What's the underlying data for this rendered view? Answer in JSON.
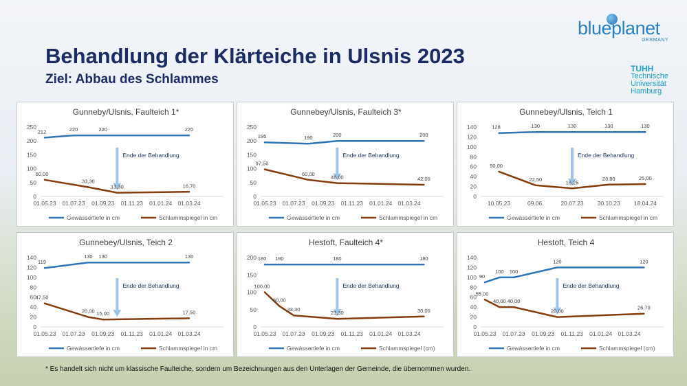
{
  "title": "Behandlung der Klärteiche in Ulsnis 2023",
  "subtitle": "Ziel: Abbau des Schlammes",
  "logos": {
    "blueplanet": {
      "text": "blueplanet",
      "sub": "GERMANY"
    },
    "tuhh": {
      "line1": "TUHH",
      "line2": "Technische",
      "line3": "Universität",
      "line4": "Hamburg"
    }
  },
  "footnote": "* Es handelt sich nicht um klassische Faulteiche, sondern um Bezeichnungen aus den Unterlagen der Gemeinde, die übernommen wurden.",
  "colors": {
    "water": "#2e75b6",
    "sludge": "#843c0c",
    "arrow": "#9dc3e6",
    "title": "#1b2c64"
  },
  "chart_data": [
    {
      "type": "line",
      "title": "Gunneby/Ulsnis, Faulteich 1*",
      "x_ticks": [
        "01.05.23",
        "01.07.23",
        "01.09.23",
        "01.11.23",
        "01.01.24",
        "01.03.24"
      ],
      "ylim": [
        0,
        250
      ],
      "y_ticks": [
        0,
        50,
        100,
        150,
        200,
        250
      ],
      "annotation": "Ende der Behandlung",
      "annotation_x": "01.10.23",
      "series": [
        {
          "name": "Gewässertiefe in cm",
          "color": "#2e75b6",
          "points": [
            [
              "01.05.23",
              212
            ],
            [
              "01.07.23",
              220
            ],
            [
              "01.09.23",
              220
            ],
            [
              "01.03.24",
              220
            ]
          ],
          "labels": [
            "212",
            "220",
            "220",
            "220"
          ]
        },
        {
          "name": "Schlammspiegel in cm",
          "color": "#843c0c",
          "points": [
            [
              "01.05.23",
              60
            ],
            [
              "01.08.23",
              33.3
            ],
            [
              "01.10.23",
              13.3
            ],
            [
              "01.03.24",
              16.7
            ]
          ],
          "labels": [
            "60,00",
            "33,30",
            "13,30",
            "16,70"
          ]
        }
      ]
    },
    {
      "type": "line",
      "title": "Gunnebey/Ulsnis, Faulteich 3*",
      "x_ticks": [
        "01.05.23",
        "01.07.23",
        "01.09.23",
        "01.11.23",
        "01.01.24",
        "01.03.24"
      ],
      "ylim": [
        0,
        250
      ],
      "y_ticks": [
        0,
        50,
        100,
        150,
        200,
        250
      ],
      "annotation": "Ende der Behandlung",
      "annotation_x": "01.10.23",
      "series": [
        {
          "name": "Gewässertiefe in cm",
          "color": "#2e75b6",
          "points": [
            [
              "01.05.23",
              195
            ],
            [
              "01.08.23",
              190
            ],
            [
              "01.10.23",
              200
            ],
            [
              "01.04.24",
              200
            ]
          ],
          "labels": [
            "195",
            "190",
            "200",
            "200"
          ]
        },
        {
          "name": "Schlammspiegel in cm",
          "color": "#843c0c",
          "points": [
            [
              "01.05.23",
              97.5
            ],
            [
              "01.08.23",
              60
            ],
            [
              "01.10.23",
              48
            ],
            [
              "01.04.24",
              42
            ]
          ],
          "labels": [
            "97,50",
            "60,00",
            "48,00",
            "42,00"
          ]
        }
      ]
    },
    {
      "type": "line",
      "title": "Gunnebey/Ulsnis, Teich 1",
      "x_ticks": [
        "10.05.23",
        "09.06.",
        "20.07.23",
        "30.10.23",
        "18.04.24"
      ],
      "ylim": [
        0,
        140
      ],
      "y_ticks": [
        0,
        20,
        40,
        60,
        80,
        100,
        120,
        140
      ],
      "annotation": "Ende der Behandlung",
      "annotation_x": "20.07.23",
      "series": [
        {
          "name": "Gewässertiefe in cm",
          "color": "#2e75b6",
          "points": [
            [
              "10.05.23",
              128
            ],
            [
              "09.06.",
              130
            ],
            [
              "20.07.23",
              130
            ],
            [
              "30.10.23",
              130
            ],
            [
              "18.04.24",
              130
            ]
          ],
          "labels": [
            "128",
            "130",
            "130",
            "130",
            "130"
          ]
        },
        {
          "name": "Schlammspiegel in cm",
          "color": "#843c0c",
          "points": [
            [
              "10.05.23",
              50
            ],
            [
              "09.06.",
              22.5
            ],
            [
              "20.07.23",
              16.25
            ],
            [
              "30.10.23",
              23.8
            ],
            [
              "18.04.24",
              25
            ]
          ],
          "labels": [
            "50,00",
            "22,50",
            "16,25",
            "23,80",
            "25,00"
          ]
        }
      ]
    },
    {
      "type": "line",
      "title": "Gunnebey/Ulsnis, Teich 2",
      "x_ticks": [
        "01.05.23",
        "01.07.23",
        "01.09.23",
        "01.11.23",
        "01.01.24",
        "01.03.24"
      ],
      "ylim": [
        0,
        140
      ],
      "y_ticks": [
        0,
        20,
        40,
        60,
        80,
        100,
        120,
        140
      ],
      "annotation": "Ende der Behandlung",
      "annotation_x": "01.10.23",
      "series": [
        {
          "name": "Gewässertiefe in cm",
          "color": "#2e75b6",
          "points": [
            [
              "01.05.23",
              119
            ],
            [
              "01.08.23",
              130
            ],
            [
              "01.09.23",
              130
            ],
            [
              "01.03.24",
              130
            ]
          ],
          "labels": [
            "119",
            "130",
            "130",
            "130"
          ]
        },
        {
          "name": "Schlammspiegel in cm",
          "color": "#843c0c",
          "points": [
            [
              "01.05.23",
              47.5
            ],
            [
              "01.08.23",
              20
            ],
            [
              "01.09.23",
              15
            ],
            [
              "01.03.24",
              17.5
            ]
          ],
          "labels": [
            "47,50",
            "20,00",
            "15,00",
            "17,50"
          ]
        }
      ]
    },
    {
      "type": "line",
      "title": "Hestoft, Faulteich 4*",
      "x_ticks": [
        "01.05.23",
        "01.07.23",
        "01.09.23",
        "01.11.23",
        "01.01.24",
        "01.03.24"
      ],
      "ylim": [
        0,
        200
      ],
      "y_ticks": [
        0,
        50,
        100,
        150,
        200
      ],
      "annotation": "Ende der Behandlung",
      "annotation_x": "01.10.23",
      "series": [
        {
          "name": "Gewässertiefe in cm",
          "color": "#2e75b6",
          "points": [
            [
              "01.05.23",
              180
            ],
            [
              "01.06.23",
              180
            ],
            [
              "01.10.23",
              180
            ],
            [
              "01.04.24",
              180
            ]
          ],
          "labels": [
            "180",
            "180",
            "180",
            "180"
          ]
        },
        {
          "name": "Schlammspiegel (cm)",
          "color": "#843c0c",
          "points": [
            [
              "01.05.23",
              100
            ],
            [
              "01.06.23",
              60
            ],
            [
              "01.07.23",
              33.3
            ],
            [
              "01.10.23",
              23.3
            ],
            [
              "01.04.24",
              30
            ]
          ],
          "labels": [
            "100,00",
            "60,00",
            "33,30",
            "23,30",
            "30,00"
          ]
        }
      ]
    },
    {
      "type": "line",
      "title": "Hestoft, Teich 4",
      "x_ticks": [
        "01.05.23",
        "01.07.23",
        "01.09.23",
        "01.11.23",
        "01.01.24",
        "01.03.24"
      ],
      "ylim": [
        0,
        140
      ],
      "y_ticks": [
        0,
        20,
        40,
        60,
        80,
        100,
        120,
        140
      ],
      "annotation": "Ende der Behandlung",
      "annotation_x": "01.10.23",
      "series": [
        {
          "name": "Gewässertiefe in cm",
          "color": "#2e75b6",
          "points": [
            [
              "01.05.23",
              90
            ],
            [
              "01.06.23",
              100
            ],
            [
              "01.07.23",
              100
            ],
            [
              "01.10.23",
              120
            ],
            [
              "01.04.24",
              120
            ]
          ],
          "labels": [
            "90",
            "100",
            "100",
            "120",
            "120"
          ]
        },
        {
          "name": "Schlammspiegel (cm)",
          "color": "#843c0c",
          "points": [
            [
              "01.05.23",
              55
            ],
            [
              "01.06.23",
              40
            ],
            [
              "01.07.23",
              40
            ],
            [
              "01.10.23",
              20
            ],
            [
              "01.04.24",
              26.7
            ]
          ],
          "labels": [
            "55,00",
            "40,00",
            "40,00",
            "20,00",
            "26,70"
          ]
        }
      ]
    }
  ]
}
